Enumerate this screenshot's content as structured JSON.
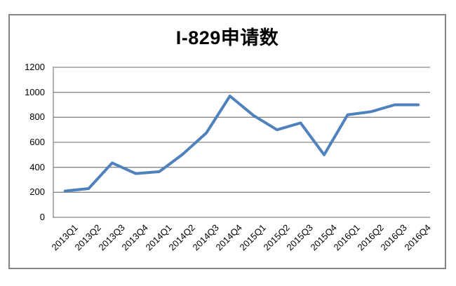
{
  "chart": {
    "title": "I-829申请数"
  },
  "chart_data": {
    "type": "line",
    "title": "I-829申请数",
    "categories": [
      "2013Q1",
      "2013Q2",
      "2013Q3",
      "2013Q4",
      "2014Q1",
      "2014Q2",
      "2014Q3",
      "2014Q4",
      "2015Q1",
      "2015Q2",
      "2015Q3",
      "2015Q4",
      "2016Q1",
      "2016Q2",
      "2016Q3",
      "2016Q4"
    ],
    "series": [
      {
        "name": "I-829申请数",
        "values": [
          210,
          230,
          435,
          350,
          365,
          505,
          675,
          970,
          815,
          700,
          755,
          500,
          820,
          845,
          900,
          900
        ]
      }
    ],
    "xlabel": "",
    "ylabel": "",
    "ylim": [
      0,
      1200
    ],
    "yticks": [
      0,
      200,
      400,
      600,
      800,
      1000,
      1200
    ],
    "grid": "horizontal",
    "legend": "none",
    "colors": {
      "line": "#4F81BD",
      "gridline": "#878787",
      "axis": "#878787",
      "border": "#858585",
      "text": "#000000",
      "background": "#FFFFFF"
    }
  }
}
